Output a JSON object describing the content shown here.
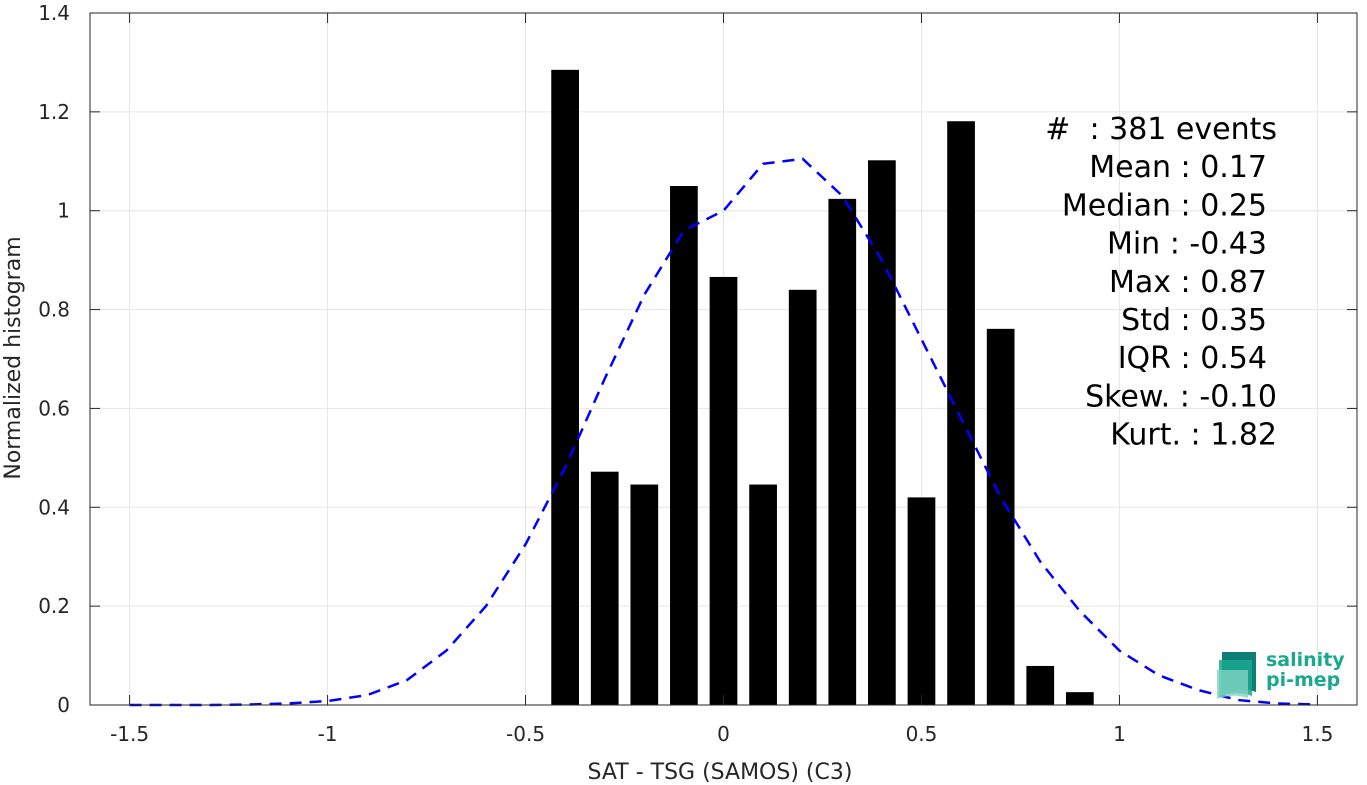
{
  "chart_data": {
    "type": "bar",
    "xlabel": "SAT - TSG (SAMOS) (C3)",
    "ylabel": "Normalized histogram",
    "xlim": [
      -1.6,
      1.6
    ],
    "ylim": [
      0,
      1.4
    ],
    "grid": true,
    "xticks": [
      "-1.5",
      "-1",
      "-0.5",
      "0",
      "0.5",
      "1",
      "1.5"
    ],
    "xtick_values": [
      -1.5,
      -1,
      -0.5,
      0,
      0.5,
      1,
      1.5
    ],
    "yticks": [
      "0",
      "0.2",
      "0.4",
      "0.6",
      "0.8",
      "1",
      "1.2",
      "1.4"
    ],
    "ytick_values": [
      0,
      0.2,
      0.4,
      0.6,
      0.8,
      1,
      1.2,
      1.4
    ],
    "bar_width": 0.07,
    "bars": {
      "x": [
        -0.4,
        -0.3,
        -0.2,
        -0.1,
        0.0,
        0.1,
        0.2,
        0.3,
        0.4,
        0.5,
        0.6,
        0.7,
        0.8,
        0.9
      ],
      "values": [
        1.285,
        0.472,
        0.446,
        1.05,
        0.866,
        0.446,
        0.84,
        1.024,
        1.102,
        0.42,
        1.181,
        0.761,
        0.079,
        0.026
      ],
      "color": "#000000"
    },
    "fit_curve": {
      "style": "dashed",
      "color": "#0000ff",
      "x": [
        -1.5,
        -1.4,
        -1.3,
        -1.2,
        -1.1,
        -1.0,
        -0.9,
        -0.8,
        -0.7,
        -0.6,
        -0.5,
        -0.4,
        -0.3,
        -0.2,
        -0.1,
        0.0,
        0.1,
        0.2,
        0.3,
        0.4,
        0.5,
        0.6,
        0.7,
        0.8,
        0.9,
        1.0,
        1.1,
        1.2,
        1.3,
        1.4,
        1.5
      ],
      "y": [
        0.0,
        0.0,
        0.0,
        0.001,
        0.003,
        0.008,
        0.02,
        0.05,
        0.11,
        0.2,
        0.325,
        0.48,
        0.66,
        0.83,
        0.96,
        1.0,
        1.095,
        1.105,
        1.03,
        0.9,
        0.74,
        0.58,
        0.42,
        0.29,
        0.19,
        0.11,
        0.06,
        0.03,
        0.01,
        0.003,
        0.001
      ]
    },
    "annotations": [
      "#  : 381 events",
      "Mean : 0.17",
      "Median : 0.25",
      "Min : -0.43",
      "Max : 0.87",
      "Std : 0.35",
      "IQR : 0.54",
      "Skew. : -0.10",
      "Kurt. : 1.82"
    ]
  },
  "logo": {
    "line1": "salinity",
    "line2": "pi-mep",
    "colors": [
      "#1aa88e",
      "#7fd3c2",
      "#0e7f78"
    ]
  }
}
